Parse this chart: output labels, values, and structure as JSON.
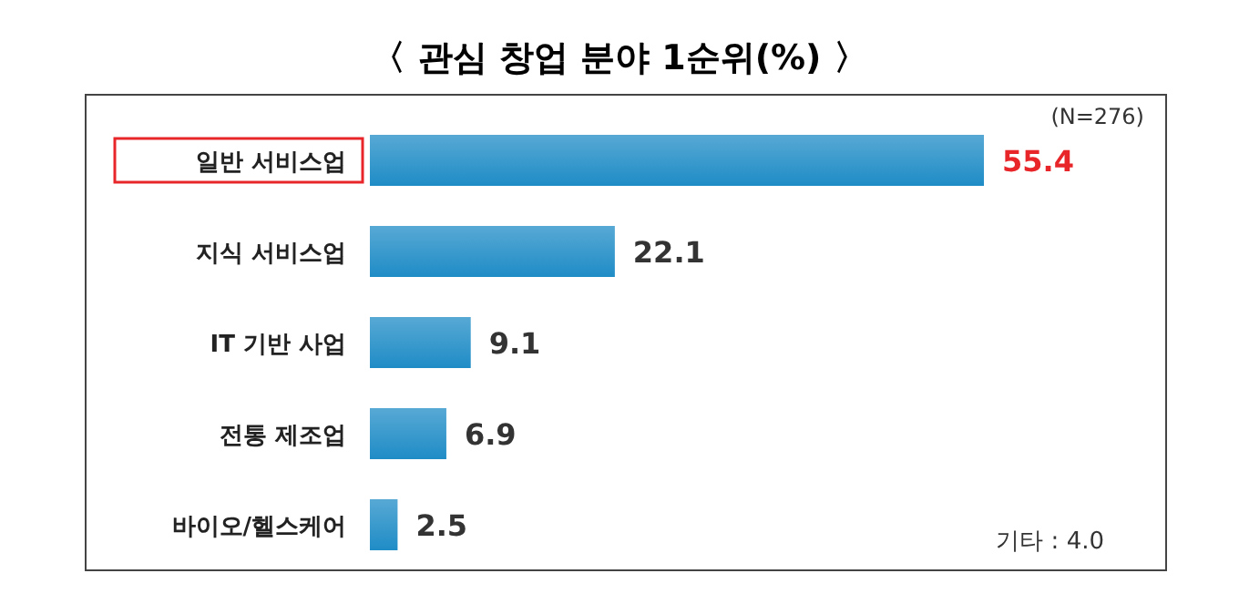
{
  "chart_data": {
    "type": "bar",
    "orientation": "horizontal",
    "title": "〈 관심 창업 분야 1순위(%) 〉",
    "categories": [
      "일반 서비스업",
      "지식 서비스업",
      "IT 기반 사업",
      "전통 제조업",
      "바이오/헬스케어"
    ],
    "values": [
      55.4,
      22.1,
      9.1,
      6.9,
      2.5
    ],
    "color": "#1f8cc6",
    "data_labels": true,
    "annotations": [
      "(N=276)",
      "기타 : 4.0"
    ]
  }
}
